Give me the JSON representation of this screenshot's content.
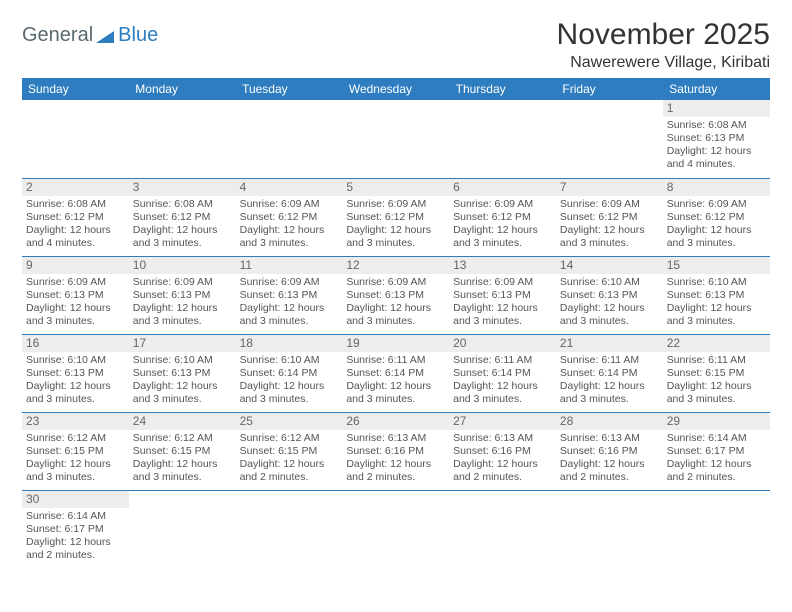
{
  "logo": {
    "text1": "General",
    "text2": "Blue"
  },
  "title": "November 2025",
  "location": "Nawerewere Village, Kiribati",
  "colors": {
    "header_bg": "#2d7dc0",
    "header_text": "#ffffff",
    "daynum_bg": "#ededed",
    "body_text": "#555555",
    "border": "#2d7dc0"
  },
  "weekdays": [
    "Sunday",
    "Monday",
    "Tuesday",
    "Wednesday",
    "Thursday",
    "Friday",
    "Saturday"
  ],
  "weeks": [
    [
      null,
      null,
      null,
      null,
      null,
      null,
      {
        "n": "1",
        "sr": "Sunrise: 6:08 AM",
        "ss": "Sunset: 6:13 PM",
        "dl": "Daylight: 12 hours and 4 minutes."
      }
    ],
    [
      {
        "n": "2",
        "sr": "Sunrise: 6:08 AM",
        "ss": "Sunset: 6:12 PM",
        "dl": "Daylight: 12 hours and 4 minutes."
      },
      {
        "n": "3",
        "sr": "Sunrise: 6:08 AM",
        "ss": "Sunset: 6:12 PM",
        "dl": "Daylight: 12 hours and 3 minutes."
      },
      {
        "n": "4",
        "sr": "Sunrise: 6:09 AM",
        "ss": "Sunset: 6:12 PM",
        "dl": "Daylight: 12 hours and 3 minutes."
      },
      {
        "n": "5",
        "sr": "Sunrise: 6:09 AM",
        "ss": "Sunset: 6:12 PM",
        "dl": "Daylight: 12 hours and 3 minutes."
      },
      {
        "n": "6",
        "sr": "Sunrise: 6:09 AM",
        "ss": "Sunset: 6:12 PM",
        "dl": "Daylight: 12 hours and 3 minutes."
      },
      {
        "n": "7",
        "sr": "Sunrise: 6:09 AM",
        "ss": "Sunset: 6:12 PM",
        "dl": "Daylight: 12 hours and 3 minutes."
      },
      {
        "n": "8",
        "sr": "Sunrise: 6:09 AM",
        "ss": "Sunset: 6:12 PM",
        "dl": "Daylight: 12 hours and 3 minutes."
      }
    ],
    [
      {
        "n": "9",
        "sr": "Sunrise: 6:09 AM",
        "ss": "Sunset: 6:13 PM",
        "dl": "Daylight: 12 hours and 3 minutes."
      },
      {
        "n": "10",
        "sr": "Sunrise: 6:09 AM",
        "ss": "Sunset: 6:13 PM",
        "dl": "Daylight: 12 hours and 3 minutes."
      },
      {
        "n": "11",
        "sr": "Sunrise: 6:09 AM",
        "ss": "Sunset: 6:13 PM",
        "dl": "Daylight: 12 hours and 3 minutes."
      },
      {
        "n": "12",
        "sr": "Sunrise: 6:09 AM",
        "ss": "Sunset: 6:13 PM",
        "dl": "Daylight: 12 hours and 3 minutes."
      },
      {
        "n": "13",
        "sr": "Sunrise: 6:09 AM",
        "ss": "Sunset: 6:13 PM",
        "dl": "Daylight: 12 hours and 3 minutes."
      },
      {
        "n": "14",
        "sr": "Sunrise: 6:10 AM",
        "ss": "Sunset: 6:13 PM",
        "dl": "Daylight: 12 hours and 3 minutes."
      },
      {
        "n": "15",
        "sr": "Sunrise: 6:10 AM",
        "ss": "Sunset: 6:13 PM",
        "dl": "Daylight: 12 hours and 3 minutes."
      }
    ],
    [
      {
        "n": "16",
        "sr": "Sunrise: 6:10 AM",
        "ss": "Sunset: 6:13 PM",
        "dl": "Daylight: 12 hours and 3 minutes."
      },
      {
        "n": "17",
        "sr": "Sunrise: 6:10 AM",
        "ss": "Sunset: 6:13 PM",
        "dl": "Daylight: 12 hours and 3 minutes."
      },
      {
        "n": "18",
        "sr": "Sunrise: 6:10 AM",
        "ss": "Sunset: 6:14 PM",
        "dl": "Daylight: 12 hours and 3 minutes."
      },
      {
        "n": "19",
        "sr": "Sunrise: 6:11 AM",
        "ss": "Sunset: 6:14 PM",
        "dl": "Daylight: 12 hours and 3 minutes."
      },
      {
        "n": "20",
        "sr": "Sunrise: 6:11 AM",
        "ss": "Sunset: 6:14 PM",
        "dl": "Daylight: 12 hours and 3 minutes."
      },
      {
        "n": "21",
        "sr": "Sunrise: 6:11 AM",
        "ss": "Sunset: 6:14 PM",
        "dl": "Daylight: 12 hours and 3 minutes."
      },
      {
        "n": "22",
        "sr": "Sunrise: 6:11 AM",
        "ss": "Sunset: 6:15 PM",
        "dl": "Daylight: 12 hours and 3 minutes."
      }
    ],
    [
      {
        "n": "23",
        "sr": "Sunrise: 6:12 AM",
        "ss": "Sunset: 6:15 PM",
        "dl": "Daylight: 12 hours and 3 minutes."
      },
      {
        "n": "24",
        "sr": "Sunrise: 6:12 AM",
        "ss": "Sunset: 6:15 PM",
        "dl": "Daylight: 12 hours and 3 minutes."
      },
      {
        "n": "25",
        "sr": "Sunrise: 6:12 AM",
        "ss": "Sunset: 6:15 PM",
        "dl": "Daylight: 12 hours and 2 minutes."
      },
      {
        "n": "26",
        "sr": "Sunrise: 6:13 AM",
        "ss": "Sunset: 6:16 PM",
        "dl": "Daylight: 12 hours and 2 minutes."
      },
      {
        "n": "27",
        "sr": "Sunrise: 6:13 AM",
        "ss": "Sunset: 6:16 PM",
        "dl": "Daylight: 12 hours and 2 minutes."
      },
      {
        "n": "28",
        "sr": "Sunrise: 6:13 AM",
        "ss": "Sunset: 6:16 PM",
        "dl": "Daylight: 12 hours and 2 minutes."
      },
      {
        "n": "29",
        "sr": "Sunrise: 6:14 AM",
        "ss": "Sunset: 6:17 PM",
        "dl": "Daylight: 12 hours and 2 minutes."
      }
    ],
    [
      {
        "n": "30",
        "sr": "Sunrise: 6:14 AM",
        "ss": "Sunset: 6:17 PM",
        "dl": "Daylight: 12 hours and 2 minutes."
      },
      null,
      null,
      null,
      null,
      null,
      null
    ]
  ]
}
